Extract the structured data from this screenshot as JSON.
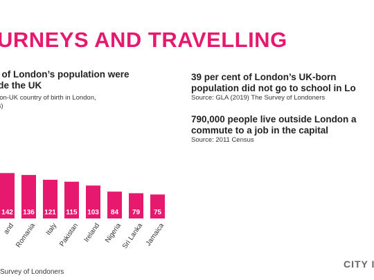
{
  "slide": {
    "title": "URNEYS AND TRAVELLING",
    "left_stat": {
      "line1": "nt of London’s population were",
      "line2": "side the UK",
      "sub1": "n non-UK country of birth in London,",
      "sub2": "nds)"
    },
    "right_stat_1": {
      "line1": "39 per cent of London’s UK-born",
      "line2": "population did not go to school in Lo",
      "source": "Source: GLA (2019) The Survey of Londoners"
    },
    "right_stat_2": {
      "line1": "790,000 people live outside London a",
      "line2": "commute to a job in the capital",
      "source": "Source: 2011 Census"
    },
    "footer_source": "Survey of Londoners",
    "logo_text": "CITY I"
  },
  "chart_data": {
    "type": "bar",
    "categories": [
      "and",
      "Romania",
      "Italy",
      "Pakistan",
      "Ireland",
      "Nigeria",
      "Sri Lanka",
      "Jamaica"
    ],
    "values": [
      142,
      136,
      121,
      115,
      103,
      84,
      79,
      75
    ],
    "title": "",
    "xlabel": "",
    "ylabel": "",
    "ylim": [
      0,
      160
    ],
    "bar_color": "#e6196e",
    "value_label_color": "#ffffff"
  }
}
